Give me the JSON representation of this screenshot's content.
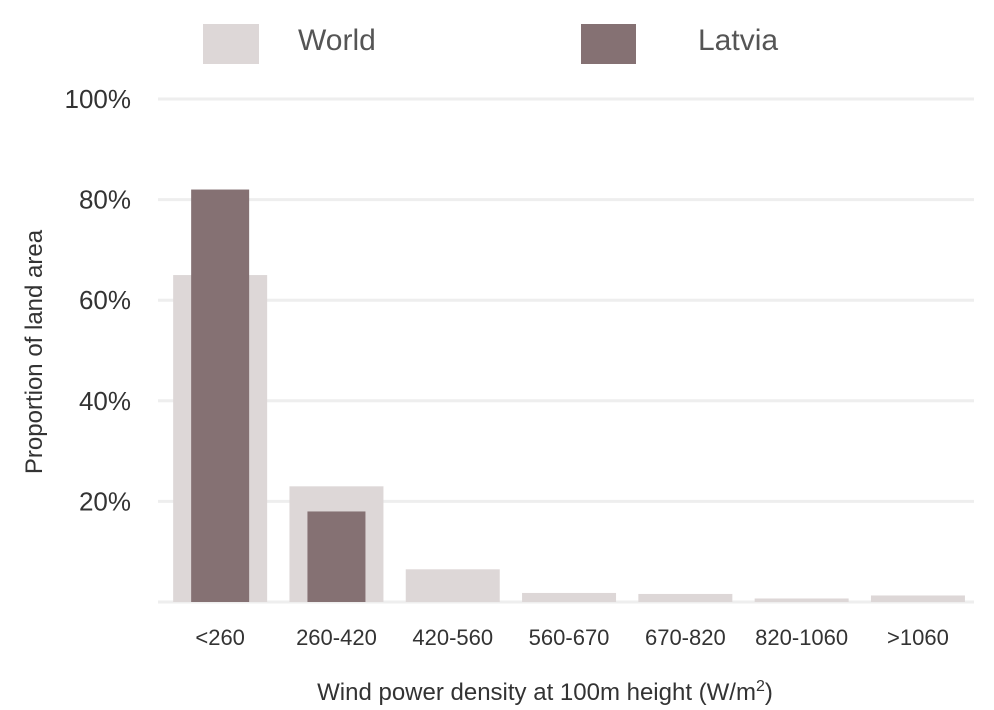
{
  "chart_data": {
    "type": "bar",
    "categories": [
      "<260",
      "260-420",
      "420-560",
      "560-670",
      "670-820",
      "820-1060",
      ">1060"
    ],
    "series": [
      {
        "name": "World",
        "color": "#ddd7d7",
        "values": [
          65,
          23,
          6.5,
          1.8,
          1.6,
          0.7,
          1.3
        ]
      },
      {
        "name": "Latvia",
        "color": "#857173",
        "values": [
          82,
          18,
          0,
          0,
          0,
          0,
          0
        ]
      }
    ],
    "xlabel": "Wind power density at 100m height (W/m",
    "xlabel_superscript": "2",
    "xlabel_suffix": ")",
    "ylabel": "Proportion of land area",
    "ylim": [
      0,
      100
    ],
    "yticks": [
      20,
      40,
      60,
      80,
      100
    ],
    "ytick_labels": [
      "20%",
      "40%",
      "60%",
      "80%",
      "100%"
    ],
    "grid": true,
    "legend_position": "top"
  }
}
